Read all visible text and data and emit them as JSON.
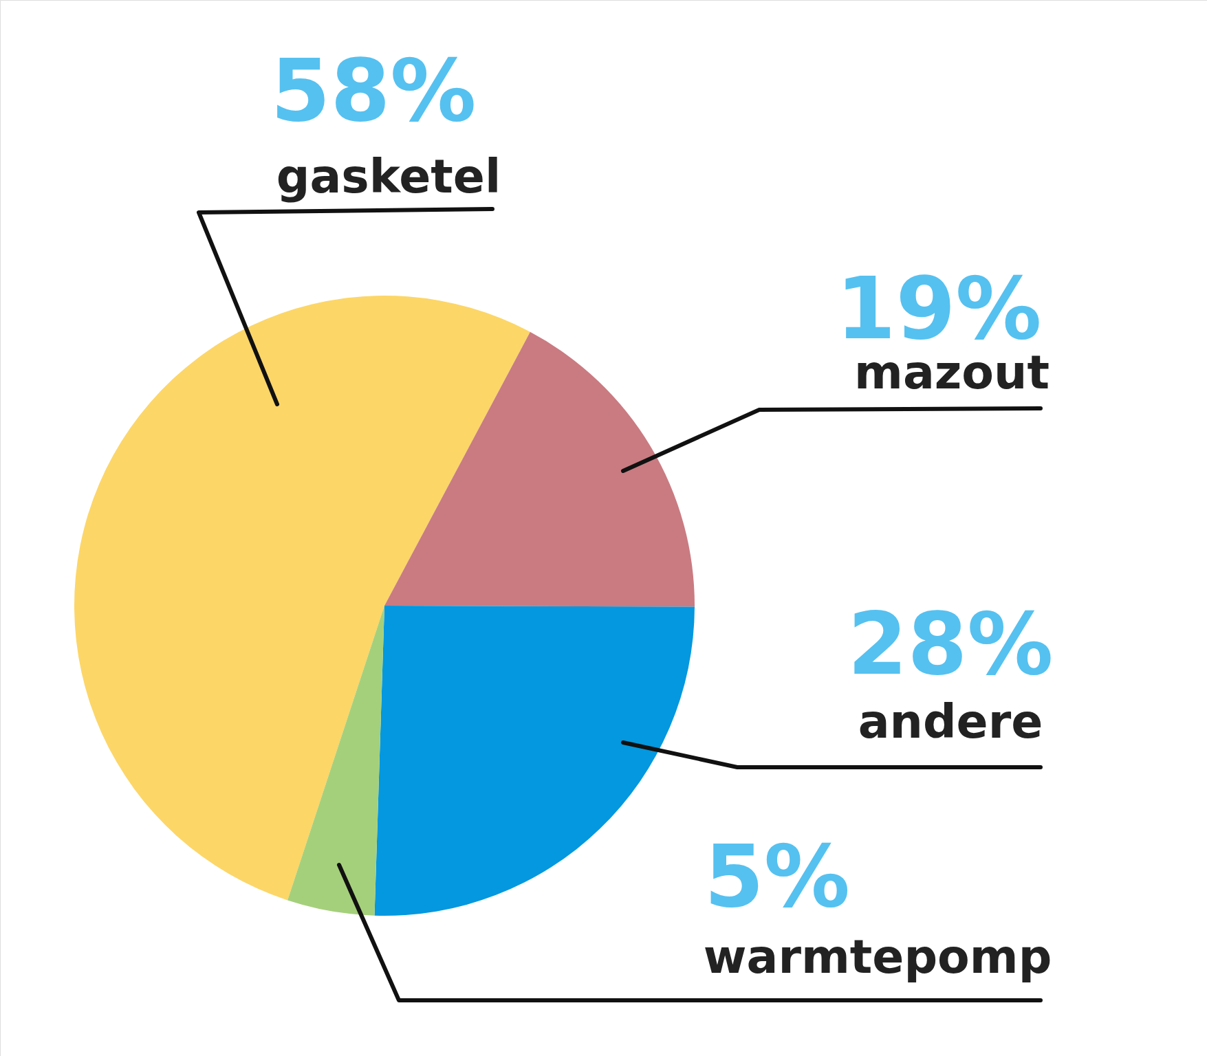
{
  "chart_data": {
    "type": "pie",
    "categories": [
      "gasketel",
      "mazout",
      "andere",
      "warmtepomp"
    ],
    "values": [
      58,
      19,
      28,
      5
    ],
    "value_labels": [
      "58%",
      "19%",
      "28%",
      "5%"
    ],
    "colors": [
      "#fcd667",
      "#c97b81",
      "#0398df",
      "#a5d07b"
    ]
  }
}
